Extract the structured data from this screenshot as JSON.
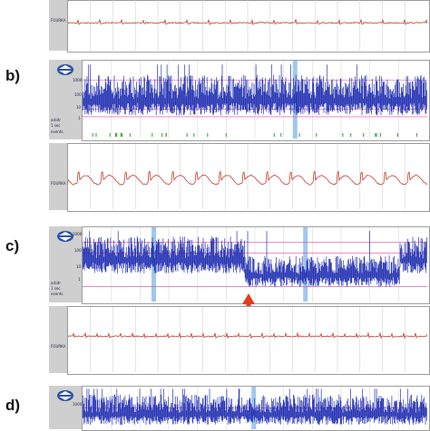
{
  "panels": [
    {
      "id": "a",
      "label": "",
      "channel_label": "FOURKA"
    },
    {
      "id": "b",
      "label": "b)",
      "axis_labels": [
        "1000",
        "100",
        "10",
        "1"
      ],
      "side_labels": [
        "arbitr",
        "1 sec",
        "events"
      ],
      "channel_label": "FOURKA"
    },
    {
      "id": "c",
      "label": "c)",
      "axis_labels": [
        "1000",
        "100",
        "10",
        "1"
      ],
      "side_labels": [
        "arbitr",
        "1 sec",
        "events"
      ],
      "channel_label": "FOURKA"
    },
    {
      "id": "d",
      "label": "d)",
      "axis_labels": [
        "1000"
      ]
    }
  ],
  "colors": {
    "signal": "#1f2db0",
    "ecg": "#c0392b",
    "threshold": "#e040a0",
    "highlight": "#9fc7ef",
    "arrow": "#e23b1d",
    "logo": "#2a4fa8"
  },
  "icons": [
    "dual-arrow-logo-icon",
    "up-arrow-marker-icon"
  ]
}
